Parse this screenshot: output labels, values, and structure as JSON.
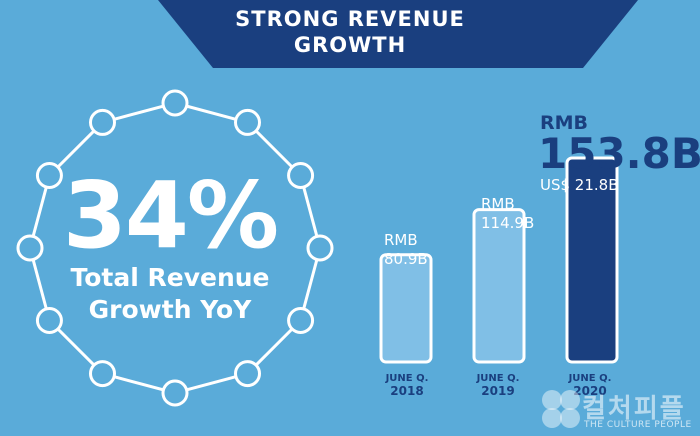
{
  "banner": {
    "line1": "STRONG REVENUE",
    "line2": "GROWTH",
    "color": "#1a3f7f"
  },
  "highlight": {
    "value": "34%",
    "label_line1": "Total Revenue",
    "label_line2": "Growth YoY"
  },
  "chart_data": {
    "type": "bar",
    "categories": [
      "JUNE Q. 2018",
      "JUNE Q. 2019",
      "JUNE Q. 2020"
    ],
    "series": [
      {
        "values": [
          80.9,
          114.9,
          153.8
        ]
      }
    ],
    "ylabel": "",
    "ylim": [
      0,
      160
    ],
    "grid": false,
    "legend": "none",
    "bar_colors": [
      "#80bfe6",
      "#80bfe6",
      "#1a3f7f"
    ],
    "data_labels": [
      {
        "currency": "RMB",
        "value": "80.9B"
      },
      {
        "currency": "RMB",
        "value": "114.9B"
      },
      {
        "currency": "RMB",
        "value": "153.8B",
        "secondary": "US$ 21.8B"
      }
    ],
    "ticks": [
      {
        "quarter": "JUNE Q.",
        "year": "2018"
      },
      {
        "quarter": "JUNE Q.",
        "year": "2019"
      },
      {
        "quarter": "JUNE Q.",
        "year": "2020"
      }
    ]
  },
  "watermark": {
    "korean": "컬처피플",
    "english": "THE CULTURE PEOPLE"
  }
}
